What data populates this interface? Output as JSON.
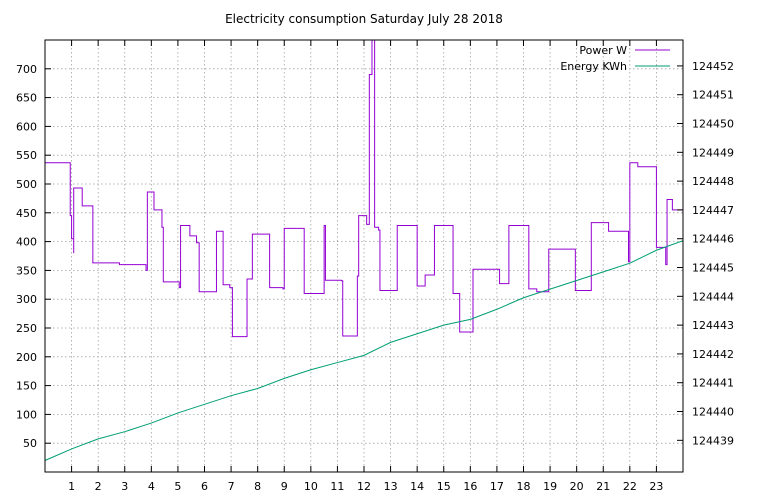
{
  "chart_data": {
    "type": "line",
    "title": "Electricity consumption Saturday July 28 2018",
    "xlim": [
      0,
      24
    ],
    "x_ticks": [
      1,
      2,
      3,
      4,
      5,
      6,
      7,
      8,
      9,
      10,
      11,
      12,
      13,
      14,
      15,
      16,
      17,
      18,
      19,
      20,
      21,
      22,
      23
    ],
    "ylim": [
      0,
      750
    ],
    "y_ticks": [
      50,
      100,
      150,
      200,
      250,
      300,
      350,
      400,
      450,
      500,
      550,
      600,
      650,
      700
    ],
    "y2lim": [
      124437.9,
      124452.9
    ],
    "y2_ticks": [
      124439,
      124440,
      124441,
      124442,
      124443,
      124444,
      124445,
      124446,
      124447,
      124448,
      124449,
      124450,
      124451,
      124452
    ],
    "grid": true,
    "legend_position": "top-right",
    "colors": {
      "power": "#9400d3",
      "energy": "#009e73"
    },
    "series": [
      {
        "name": "Power W",
        "axis": "left",
        "step": true,
        "points": [
          [
            0,
            537
          ],
          [
            0.95,
            537
          ],
          [
            0.95,
            445
          ],
          [
            1.0,
            405
          ],
          [
            1.08,
            380
          ],
          [
            1.08,
            493
          ],
          [
            1.4,
            493
          ],
          [
            1.4,
            462
          ],
          [
            1.8,
            462
          ],
          [
            1.8,
            363
          ],
          [
            2.8,
            363
          ],
          [
            2.8,
            360
          ],
          [
            3.8,
            360
          ],
          [
            3.8,
            350
          ],
          [
            3.85,
            486
          ],
          [
            4.1,
            486
          ],
          [
            4.1,
            455
          ],
          [
            4.4,
            455
          ],
          [
            4.4,
            425
          ],
          [
            4.45,
            330
          ],
          [
            5.0,
            330
          ],
          [
            5.05,
            320
          ],
          [
            5.1,
            428
          ],
          [
            5.45,
            428
          ],
          [
            5.45,
            410
          ],
          [
            5.7,
            410
          ],
          [
            5.7,
            398
          ],
          [
            5.8,
            313
          ],
          [
            6.45,
            313
          ],
          [
            6.45,
            418
          ],
          [
            6.7,
            418
          ],
          [
            6.7,
            325
          ],
          [
            6.9,
            325
          ],
          [
            6.95,
            320
          ],
          [
            7.05,
            235
          ],
          [
            7.55,
            235
          ],
          [
            7.6,
            335
          ],
          [
            7.8,
            335
          ],
          [
            7.8,
            413
          ],
          [
            8.45,
            413
          ],
          [
            8.45,
            320
          ],
          [
            8.85,
            320
          ],
          [
            8.95,
            318
          ],
          [
            9.0,
            423
          ],
          [
            9.75,
            423
          ],
          [
            9.75,
            310
          ],
          [
            10.15,
            310
          ],
          [
            10.5,
            312
          ],
          [
            10.5,
            428
          ],
          [
            10.55,
            333
          ],
          [
            10.95,
            333
          ],
          [
            11.15,
            332
          ],
          [
            11.2,
            236
          ],
          [
            11.7,
            236
          ],
          [
            11.75,
            340
          ],
          [
            11.8,
            445
          ],
          [
            12.0,
            445
          ],
          [
            12.1,
            430
          ],
          [
            12.2,
            690
          ],
          [
            12.3,
            750
          ],
          [
            12.4,
            750
          ],
          [
            12.4,
            425
          ],
          [
            12.55,
            420
          ],
          [
            12.6,
            315
          ],
          [
            13.2,
            315
          ],
          [
            13.25,
            428
          ],
          [
            13.95,
            428
          ],
          [
            14.0,
            323
          ],
          [
            14.3,
            323
          ],
          [
            14.3,
            342
          ],
          [
            14.6,
            342
          ],
          [
            14.65,
            428
          ],
          [
            15.35,
            428
          ],
          [
            15.35,
            310
          ],
          [
            15.55,
            310
          ],
          [
            15.6,
            243
          ],
          [
            16.0,
            243
          ],
          [
            16.1,
            352
          ],
          [
            17.1,
            352
          ],
          [
            17.1,
            327
          ],
          [
            17.4,
            327
          ],
          [
            17.45,
            428
          ],
          [
            18.1,
            428
          ],
          [
            18.2,
            318
          ],
          [
            18.45,
            318
          ],
          [
            18.5,
            313
          ],
          [
            18.9,
            313
          ],
          [
            18.95,
            387
          ],
          [
            19.85,
            387
          ],
          [
            19.95,
            315
          ],
          [
            20.5,
            315
          ],
          [
            20.55,
            433
          ],
          [
            21.15,
            433
          ],
          [
            21.2,
            418
          ],
          [
            21.9,
            418
          ],
          [
            21.95,
            365
          ],
          [
            22.0,
            537
          ],
          [
            22.25,
            537
          ],
          [
            22.3,
            530
          ],
          [
            22.9,
            530
          ],
          [
            23.0,
            390
          ],
          [
            23.3,
            390
          ],
          [
            23.35,
            360
          ],
          [
            23.4,
            473
          ],
          [
            23.6,
            473
          ],
          [
            23.6,
            455
          ],
          [
            24.0,
            455
          ]
        ]
      },
      {
        "name": "Energy KWh",
        "axis": "right",
        "step": false,
        "points": [
          [
            0,
            124438.3
          ],
          [
            1,
            124438.7
          ],
          [
            2,
            124439.05
          ],
          [
            3,
            124439.3
          ],
          [
            4,
            124439.6
          ],
          [
            5,
            124439.95
          ],
          [
            6,
            124440.25
          ],
          [
            7,
            124440.55
          ],
          [
            8,
            124440.8
          ],
          [
            9,
            124441.15
          ],
          [
            10,
            124441.45
          ],
          [
            11,
            124441.7
          ],
          [
            12,
            124441.95
          ],
          [
            13,
            124442.4
          ],
          [
            14,
            124442.7
          ],
          [
            15,
            124443
          ],
          [
            16,
            124443.2
          ],
          [
            17,
            124443.55
          ],
          [
            18,
            124443.95
          ],
          [
            19,
            124444.25
          ],
          [
            20,
            124444.55
          ],
          [
            21,
            124444.85
          ],
          [
            22,
            124445.15
          ],
          [
            23,
            124445.6
          ],
          [
            24,
            124445.93
          ]
        ]
      }
    ]
  }
}
